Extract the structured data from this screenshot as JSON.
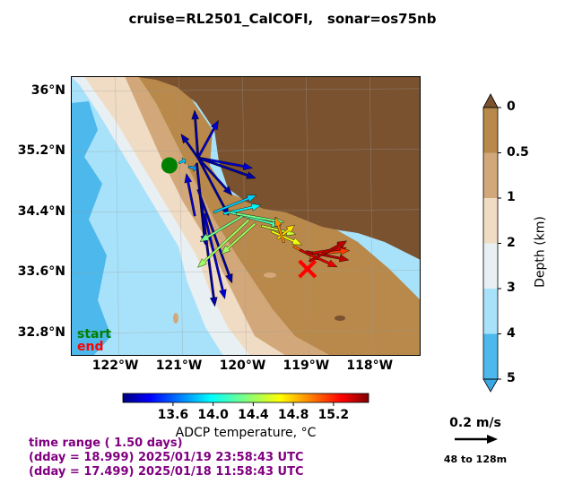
{
  "title": "cruise=RL2501_CalCOFI,   sonar=os75nb",
  "map": {
    "lat_ticks": [
      {
        "value": 36.0,
        "label": "36°N"
      },
      {
        "value": 35.2,
        "label": "35.2°N"
      },
      {
        "value": 34.4,
        "label": "34.4°N"
      },
      {
        "value": 33.6,
        "label": "33.6°N"
      },
      {
        "value": 32.8,
        "label": "32.8°N"
      }
    ],
    "lon_ticks": [
      {
        "value": -122,
        "label": "122°W"
      },
      {
        "value": -121,
        "label": "121°W"
      },
      {
        "value": -120,
        "label": "120°W"
      },
      {
        "value": -119,
        "label": "119°W"
      },
      {
        "value": -118,
        "label": "118°W"
      }
    ],
    "start_label": "start",
    "end_label": "end",
    "start_color": "#008000",
    "end_color": "#ff0000"
  },
  "chart_data": {
    "type": "scatter",
    "description_free": true,
    "lon_range": [
      -122.7,
      -117.2
    ],
    "lat_range": [
      32.5,
      36.2
    ],
    "start": {
      "lon": -121.15,
      "lat": 35.02
    },
    "end": {
      "lon": -118.98,
      "lat": 33.65
    },
    "vectors": [
      {
        "lon": -121.0,
        "lat": 35.05,
        "u": 0.04,
        "v": 0.02,
        "temp": 13.9
      },
      {
        "lon": -120.85,
        "lat": 35.0,
        "u": 0.05,
        "v": -0.01,
        "temp": 13.8
      },
      {
        "lon": -120.7,
        "lat": 35.12,
        "u": -0.02,
        "v": 0.28,
        "temp": 13.2
      },
      {
        "lon": -120.7,
        "lat": 35.12,
        "u": 0.12,
        "v": 0.22,
        "temp": 13.3
      },
      {
        "lon": -120.7,
        "lat": 35.12,
        "u": 0.32,
        "v": -0.06,
        "temp": 13.3
      },
      {
        "lon": -120.7,
        "lat": 35.12,
        "u": 0.34,
        "v": -0.12,
        "temp": 13.2
      },
      {
        "lon": -120.7,
        "lat": 35.12,
        "u": 0.2,
        "v": -0.22,
        "temp": 13.2
      },
      {
        "lon": -120.7,
        "lat": 35.12,
        "u": 0.18,
        "v": -0.34,
        "temp": 13.2
      },
      {
        "lon": -120.7,
        "lat": 35.12,
        "u": -0.1,
        "v": 0.14,
        "temp": 13.2
      },
      {
        "lon": -120.72,
        "lat": 35.05,
        "u": 0.05,
        "v": -0.48,
        "temp": 13.2
      },
      {
        "lon": -120.7,
        "lat": 34.7,
        "u": 0.2,
        "v": -0.55,
        "temp": 13.2
      },
      {
        "lon": -120.65,
        "lat": 34.55,
        "u": 0.08,
        "v": -0.62,
        "temp": 13.2
      },
      {
        "lon": -120.6,
        "lat": 34.38,
        "u": 0.12,
        "v": -0.5,
        "temp": 13.3
      },
      {
        "lon": -120.75,
        "lat": 34.35,
        "u": -0.05,
        "v": 0.25,
        "temp": 13.3
      },
      {
        "lon": -120.45,
        "lat": 34.4,
        "u": 0.25,
        "v": 0.1,
        "temp": 13.9
      },
      {
        "lon": -120.3,
        "lat": 34.38,
        "u": 0.22,
        "v": 0.05,
        "temp": 14.0
      },
      {
        "lon": -120.2,
        "lat": 34.4,
        "u": 0.3,
        "v": -0.08,
        "temp": 14.2
      },
      {
        "lon": -120.1,
        "lat": 34.38,
        "u": 0.28,
        "v": -0.05,
        "temp": 14.3
      },
      {
        "lon": -120.0,
        "lat": 34.35,
        "u": -0.25,
        "v": -0.15,
        "temp": 14.3
      },
      {
        "lon": -119.9,
        "lat": 34.3,
        "u": -0.3,
        "v": -0.28,
        "temp": 14.4
      },
      {
        "lon": -119.8,
        "lat": 34.25,
        "u": -0.2,
        "v": -0.18,
        "temp": 14.4
      },
      {
        "lon": -119.7,
        "lat": 34.22,
        "u": 0.2,
        "v": -0.05,
        "temp": 14.5
      },
      {
        "lon": -119.55,
        "lat": 34.15,
        "u": 0.18,
        "v": -0.08,
        "temp": 14.6
      },
      {
        "lon": -119.45,
        "lat": 34.05,
        "u": 0.1,
        "v": 0.08,
        "temp": 14.7
      },
      {
        "lon": -119.35,
        "lat": 34.0,
        "u": -0.05,
        "v": 0.15,
        "temp": 14.9
      },
      {
        "lon": -119.2,
        "lat": 33.95,
        "u": 0.15,
        "v": -0.08,
        "temp": 15.0
      },
      {
        "lon": -119.1,
        "lat": 33.9,
        "u": 0.22,
        "v": -0.1,
        "temp": 15.3
      },
      {
        "lon": -119.0,
        "lat": 33.88,
        "u": 0.25,
        "v": -0.05,
        "temp": 15.4
      },
      {
        "lon": -118.9,
        "lat": 33.86,
        "u": 0.2,
        "v": 0.03,
        "temp": 15.3
      },
      {
        "lon": -118.8,
        "lat": 33.85,
        "u": 0.18,
        "v": 0.02,
        "temp": 15.1
      },
      {
        "lon": -118.7,
        "lat": 33.86,
        "u": 0.12,
        "v": 0.06,
        "temp": 15.1
      },
      {
        "lon": -118.95,
        "lat": 33.75,
        "u": 0.22,
        "v": 0.12,
        "temp": 15.4
      }
    ]
  },
  "temp_colorbar": {
    "label": "ADCP temperature, °C",
    "min": 13.1,
    "max": 15.55,
    "ticks": [
      {
        "value": 13.6,
        "label": "13.6"
      },
      {
        "value": 14.0,
        "label": "14.0"
      },
      {
        "value": 14.4,
        "label": "14.4"
      },
      {
        "value": 14.8,
        "label": "14.8"
      },
      {
        "value": 15.2,
        "label": "15.2"
      }
    ]
  },
  "depth_colorbar": {
    "label": "Depth (km)",
    "ticks": [
      {
        "value": 0,
        "label": "0"
      },
      {
        "value": 0.5,
        "label": "0.5"
      },
      {
        "value": 1,
        "label": "1"
      },
      {
        "value": 2,
        "label": "2"
      },
      {
        "value": 3,
        "label": "3"
      },
      {
        "value": 4,
        "label": "4"
      },
      {
        "value": 5,
        "label": "5"
      }
    ],
    "colors": [
      "#b8894a",
      "#d2a87a",
      "#f0dcc4",
      "#e8f0f4",
      "#a8e2fa",
      "#4cb8ec"
    ],
    "top_color": "#7a5230",
    "bottom_color": "#3aa6e2"
  },
  "scale_arrow": {
    "label": "0.2 m/s",
    "depth_range": "48 to 128m"
  },
  "info": {
    "line1": "time range ( 1.50 days)",
    "line2": "(dday = 18.999) 2025/01/19 23:58:43 UTC",
    "line3": "(dday = 17.499) 2025/01/18 11:58:43 UTC"
  }
}
